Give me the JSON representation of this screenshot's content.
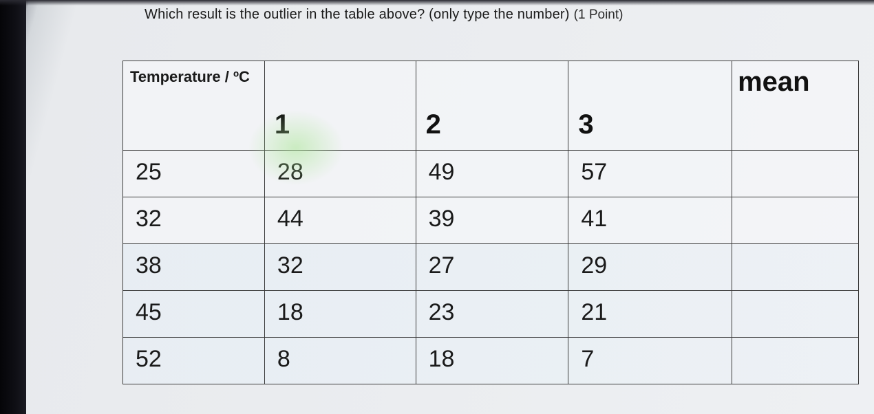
{
  "question": {
    "text": "Which result is the outlier in the table above? (only type the number)",
    "points_label": "(1 Point)"
  },
  "table": {
    "header": {
      "temperature_label": "Temperature / ºC",
      "col1": "1",
      "col2": "2",
      "col3": "3",
      "mean_label": "mean"
    },
    "rows": [
      {
        "temp": "25",
        "c1": "28",
        "c2": "49",
        "c3": "57",
        "mean": ""
      },
      {
        "temp": "32",
        "c1": "44",
        "c2": "39",
        "c3": "41",
        "mean": ""
      },
      {
        "temp": "38",
        "c1": "32",
        "c2": "27",
        "c3": "29",
        "mean": ""
      },
      {
        "temp": "45",
        "c1": "18",
        "c2": "23",
        "c3": "21",
        "mean": ""
      },
      {
        "temp": "52",
        "c1": "8",
        "c2": "18",
        "c3": "7",
        "mean": ""
      }
    ]
  },
  "style": {
    "background_gradient": [
      "#0a0a0f",
      "#e8eaed"
    ],
    "border_color": "#3a3a3a",
    "text_color": "#1a1a1a",
    "header_font_size_pt": 30,
    "cell_font_size_pt": 26,
    "question_font_size_pt": 15,
    "green_highlight_color": "#aae696"
  }
}
